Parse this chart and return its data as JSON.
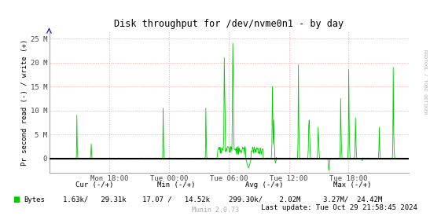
{
  "title": "Disk throughput for /dev/nvme0n1 - by day",
  "ylabel": "Pr second read (-) / write (+)",
  "right_label": "RRDTOOL / TOBI OETIKER",
  "x_tick_labels": [
    "Mon 18:00",
    "Tue 00:00",
    "Tue 06:00",
    "Tue 12:00",
    "Tue 18:00"
  ],
  "x_tick_positions": [
    0.167,
    0.333,
    0.5,
    0.667,
    0.833
  ],
  "ylim": [
    -3000000,
    26500000
  ],
  "yticks": [
    0,
    5000000,
    10000000,
    15000000,
    20000000,
    25000000
  ],
  "ytick_labels": [
    "0",
    "5 M",
    "10 M",
    "15 M",
    "20 M",
    "25 M"
  ],
  "bg_color": "#FFFFFF",
  "grid_color": "#FF9999",
  "line_color": "#00CC00",
  "zero_line_color": "#000000",
  "legend_label": "Bytes",
  "legend_color": "#00CC00",
  "cur_label": "Cur (-/+)",
  "min_label": "Min (-/+)",
  "avg_label": "Avg (-/+)",
  "max_label": "Max (-/+)",
  "cur_val": "1.63k/   29.31k",
  "min_val": "17.07 /   14.52k",
  "avg_val": "299.30k/    2.02M",
  "max_val": "3.27M/  24.42M",
  "last_update": "Last update: Tue Oct 29 21:58:45 2024",
  "munin_version": "Munin 2.0.73",
  "n_points": 800
}
